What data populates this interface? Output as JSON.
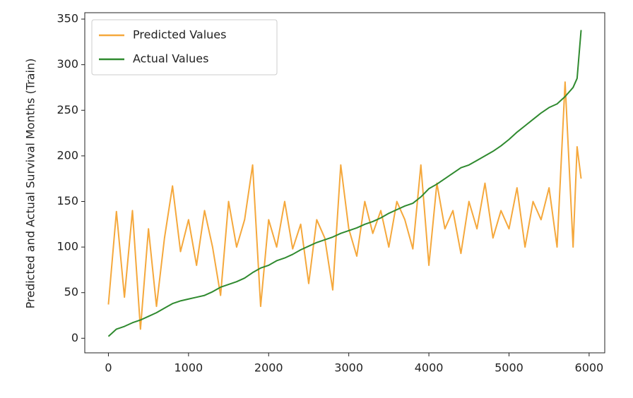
{
  "chart_data": {
    "type": "line",
    "y_label": "Predicted and Actual Survival Months (Train)",
    "x": [
      0,
      100,
      200,
      300,
      400,
      500,
      600,
      700,
      800,
      900,
      1000,
      1100,
      1200,
      1300,
      1400,
      1500,
      1600,
      1700,
      1800,
      1900,
      2000,
      2100,
      2200,
      2300,
      2400,
      2500,
      2600,
      2700,
      2800,
      2900,
      3000,
      3100,
      3200,
      3300,
      3400,
      3500,
      3600,
      3700,
      3800,
      3900,
      4000,
      4100,
      4200,
      4300,
      4400,
      4500,
      4600,
      4700,
      4800,
      4900,
      5000,
      5100,
      5200,
      5300,
      5400,
      5500,
      5600,
      5700,
      5800,
      5850,
      5900
    ],
    "series": [
      {
        "name": "Predicted Values",
        "color": "#f5a83c",
        "values": [
          37,
          139,
          45,
          140,
          10,
          120,
          35,
          110,
          167,
          95,
          130,
          80,
          140,
          100,
          47,
          150,
          100,
          130,
          190,
          35,
          130,
          100,
          150,
          98,
          125,
          60,
          130,
          110,
          53,
          190,
          120,
          90,
          150,
          115,
          140,
          100,
          150,
          130,
          98,
          190,
          80,
          170,
          120,
          140,
          93,
          150,
          120,
          170,
          110,
          140,
          120,
          165,
          100,
          150,
          130,
          165,
          100,
          281,
          100,
          210,
          175
        ]
      },
      {
        "name": "Actual Values",
        "color": "#2f8a2f",
        "values": [
          2,
          10,
          13,
          17,
          20,
          24,
          28,
          33,
          38,
          41,
          43,
          45,
          47,
          51,
          56,
          59,
          62,
          66,
          72,
          77,
          80,
          85,
          88,
          92,
          97,
          101,
          105,
          108,
          111,
          115,
          118,
          121,
          125,
          128,
          132,
          137,
          141,
          145,
          148,
          155,
          164,
          169,
          175,
          181,
          187,
          190,
          195,
          200,
          205,
          211,
          218,
          226,
          233,
          240,
          247,
          253,
          257,
          265,
          275,
          285,
          338
        ]
      }
    ],
    "xlim": [
      -295,
      6195
    ],
    "ylim": [
      -16,
      357
    ],
    "xticks": [
      0,
      1000,
      2000,
      3000,
      4000,
      5000,
      6000
    ],
    "yticks": [
      0,
      50,
      100,
      150,
      200,
      250,
      300,
      350
    ],
    "legend": "upper left"
  }
}
